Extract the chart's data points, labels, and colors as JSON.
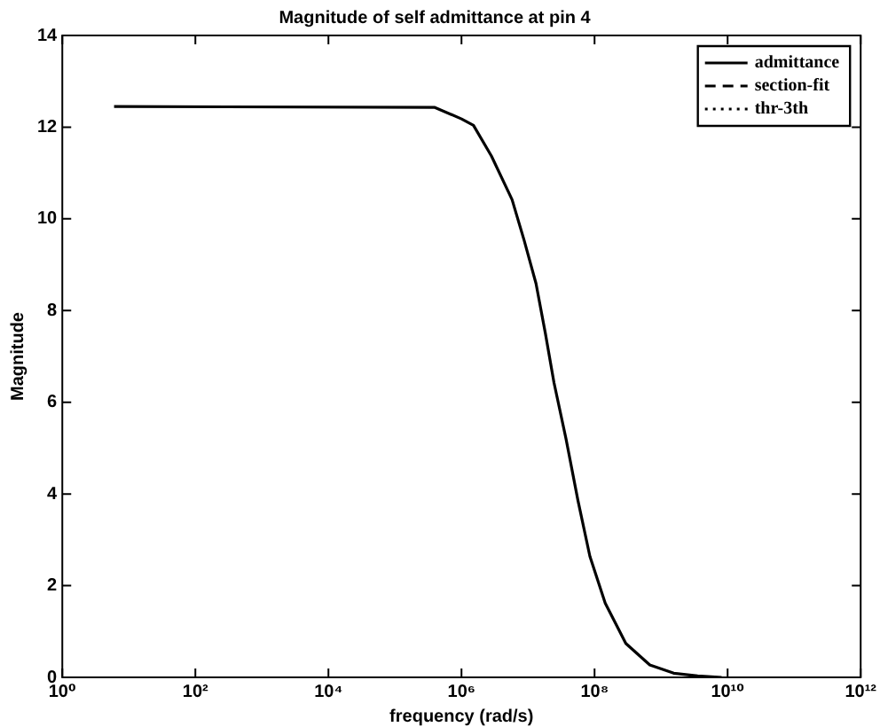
{
  "chart_data": {
    "type": "line",
    "title": "Magnitude of self admittance at pin 4",
    "xlabel": "frequency (rad/s)",
    "ylabel": "Magnitude",
    "log": "x",
    "grid": false,
    "legend": "top right",
    "marker": "none",
    "x": [
      6,
      398107,
      1000000,
      1513561,
      2818383,
      5754399,
      8709636,
      13182567,
      18197009,
      24547089,
      37153523,
      56234133,
      85113804,
      144543977,
      295120923,
      676082975,
      1548816619,
      3548133892,
      8128305162
    ],
    "xlim": [
      1,
      1000000000000
    ],
    "xticks": [
      {
        "value": 1,
        "label": "10⁰"
      },
      {
        "value": 100,
        "label": "10²"
      },
      {
        "value": 10000,
        "label": "10⁴"
      },
      {
        "value": 1000000,
        "label": "10⁶"
      },
      {
        "value": 100000000,
        "label": "10⁸"
      },
      {
        "value": 10000000000,
        "label": "10¹⁰"
      },
      {
        "value": 1000000000000,
        "label": "10¹²"
      }
    ],
    "ylim": [
      0,
      14
    ],
    "yticks": [
      0,
      2,
      4,
      6,
      8,
      10,
      12,
      14
    ],
    "series": [
      {
        "name": "admittance",
        "color": "#000000",
        "line_style": "solid",
        "values": [
          12.45,
          12.43,
          12.18,
          12.04,
          11.37,
          10.42,
          9.54,
          8.59,
          7.51,
          6.43,
          5.21,
          3.86,
          2.64,
          1.62,
          0.74,
          0.27,
          0.09,
          0.03,
          0
        ]
      },
      {
        "name": "section-fit",
        "color": "#000000",
        "line_style": "dashed",
        "values": [
          null,
          null,
          null,
          null,
          null,
          null,
          null,
          null,
          null,
          null,
          null,
          null,
          null,
          null,
          null,
          null,
          null,
          null,
          null
        ]
      },
      {
        "name": "thr-3th",
        "color": "#000000",
        "line_style": "dotted",
        "values": [
          null,
          null,
          null,
          null,
          null,
          null,
          null,
          null,
          null,
          null,
          null,
          null,
          null,
          null,
          null,
          null,
          null,
          null,
          null
        ]
      }
    ]
  }
}
